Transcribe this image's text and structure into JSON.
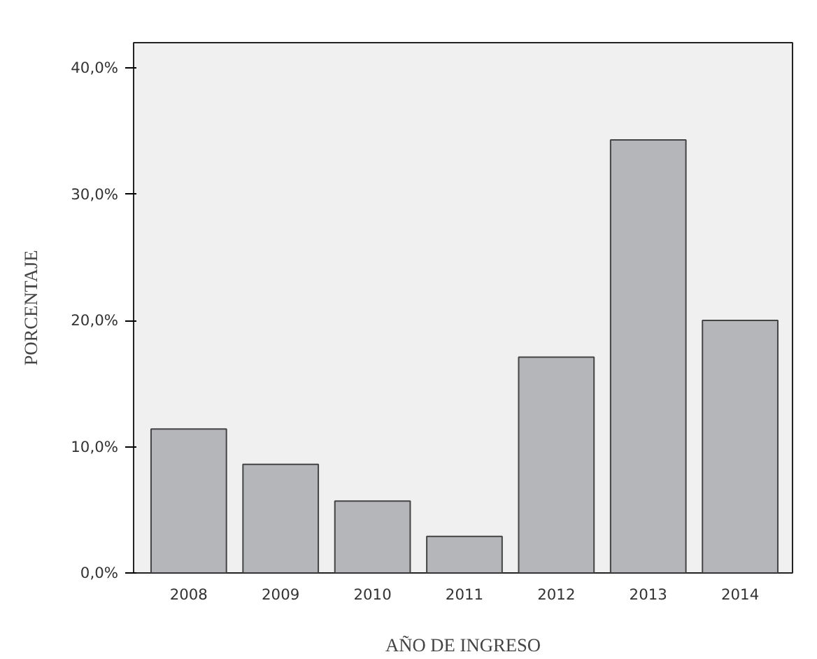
{
  "chart_data": {
    "type": "bar",
    "xlabel": "AÑO DE INGRESO",
    "ylabel": "PORCENTAJE",
    "categories": [
      "2008",
      "2009",
      "2010",
      "2011",
      "2012",
      "2013",
      "2014"
    ],
    "values": [
      11.4,
      8.6,
      5.7,
      2.9,
      17.1,
      34.3,
      20.0
    ],
    "color": "#b5b6ba",
    "ylim": [
      0,
      42
    ],
    "yticks": [
      {
        "value": 0,
        "label": "0,0%"
      },
      {
        "value": 10,
        "label": "10,0%"
      },
      {
        "value": 20,
        "label": "20,0%"
      },
      {
        "value": 30,
        "label": "30,0%"
      },
      {
        "value": 40,
        "label": "40,0%"
      }
    ],
    "grid": false
  }
}
